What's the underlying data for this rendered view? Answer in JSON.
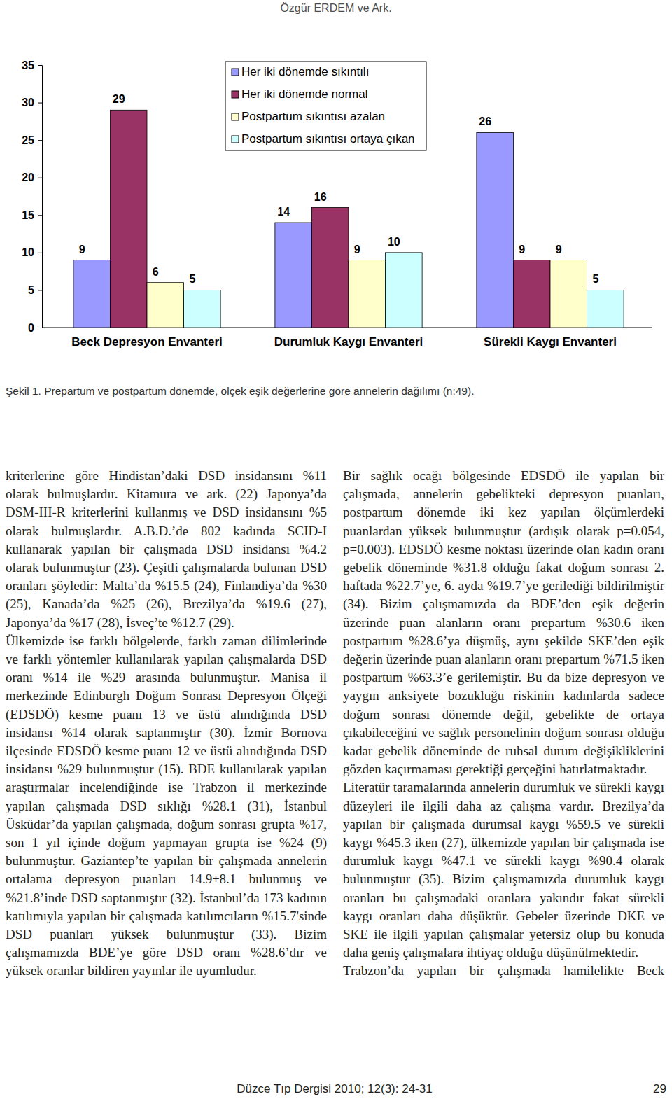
{
  "header": {
    "running_title": "Özgür ERDEM ve Ark."
  },
  "chart_data": {
    "type": "bar",
    "categories": [
      "Beck Depresyon Envanteri",
      "Durumluk Kaygı Envanteri",
      "Sürekli Kaygı Envanteri"
    ],
    "series": [
      {
        "name": "Her iki dönemde sıkıntılı",
        "color": "#9999ff",
        "values": [
          9,
          14,
          26
        ]
      },
      {
        "name": "Her iki dönemde normal",
        "color": "#993366",
        "values": [
          29,
          16,
          9
        ]
      },
      {
        "name": "Postpartum sıkıntısı azalan",
        "color": "#ffffcc",
        "values": [
          6,
          9,
          9
        ]
      },
      {
        "name": "Postpartum sıkıntısı ortaya çıkan",
        "color": "#ccffff",
        "values": [
          5,
          10,
          5
        ]
      }
    ],
    "ylim": [
      0,
      35
    ],
    "yticks": [
      0,
      5,
      10,
      15,
      20,
      25,
      30,
      35
    ],
    "grid": false,
    "legend": "top",
    "data_labels": true
  },
  "caption": "Şekil 1. Prepartum ve postpartum dönemde, ölçek eşik değerlerine göre annelerin dağılımı (n:49).",
  "columns": [
    {
      "paragraphs": [
        "kriterlerine göre Hindistan’daki DSD insidansını %11 olarak bulmuşlardır. Kitamura ve ark. (22) Japonya’da DSM-III-R kriterlerini kullanmış ve DSD insidansını %5 olarak bulmuşlardır. A.B.D.’de 802 kadında SCID-I kullanarak yapılan bir çalışmada DSD insidansı %4.2 olarak bulunmuştur (23). Çeşitli çalışmalarda bulunan DSD oranları şöyledir: Malta’da %15.5 (24), Finlandiya’da %30 (25), Kanada’da %25 (26), Brezilya’da %19.6 (27), Japonya’da %17 (28), İsveç’te %12.7 (29).",
        "Ülkemizde ise farklı bölgelerde, farklı zaman dilimlerinde ve farklı yöntemler kullanılarak yapılan çalışmalarda DSD oranı %14 ile %29 arasında bulunmuştur. Manisa il merkezinde Edinburgh Doğum Sonrası Depresyon Ölçeği (EDSDÖ) kesme puanı 13 ve üstü alındığında DSD insidansı %14 olarak saptanmıştır (30). İzmir Bornova ilçesinde EDSDÖ kesme puanı 12 ve üstü alındığında DSD insidansı %29 bulunmuştur (15). BDE kullanılarak yapılan araştırmalar incelendiğinde ise Trabzon il merkezinde yapılan çalışmada DSD sıklığı %28.1 (31), İstanbul Üsküdar’da yapılan çalışmada, doğum sonrası grupta %17, son 1 yıl içinde doğum yapmayan grupta ise %24 (9) bulunmuştur. Gaziantep’te yapılan bir çalışmada annelerin ortalama depresyon puanları 14.9±8.1 bulunmuş ve %21.8’inde DSD saptanmıştır (32). İstanbul’da 173 kadının katılımıyla yapılan bir çalışmada katılımcıların %15.7'sinde DSD puanları yüksek bulunmuştur (33). Bizim çalışmamızda BDE’ye göre DSD oranı %28.6’dır ve yüksek oranlar bildiren yayınlar ile uyumludur."
      ]
    },
    {
      "paragraphs": [
        "Bir sağlık ocağı bölgesinde EDSDÖ ile yapılan bir çalışmada, annelerin gebelikteki depresyon puanları, postpartum dönemde iki kez yapılan ölçümlerdeki puanlardan yüksek bulunmuştur (ardışık olarak p=0.054, p=0.003). EDSDÖ kesme noktası üzerinde olan kadın oranı gebelik döneminde %31.8 olduğu fakat doğum sonrası 2. haftada %22.7’ye, 6. ayda %19.7’ye gerilediği bildirilmiştir (34). Bizim çalışmamızda da BDE’den eşik değerin üzerinde puan alanların oranı prepartum %30.6 iken postpartum %28.6’ya düşmüş, aynı şekilde SKE’den eşik değerin üzerinde puan alanların oranı prepartum %71.5 iken postpartum %63.3’e gerilemiştir. Bu da bize depresyon ve yaygın anksiyete bozukluğu riskinin kadınlarda sadece doğum sonrası dönemde değil, gebelikte de ortaya çıkabileceğini ve sağlık personelinin doğum sonrası olduğu kadar gebelik döneminde de ruhsal durum değişikliklerini gözden kaçırmaması gerektiği gerçeğini hatırlatmaktadır.",
        "Literatür taramalarında annelerin durumluk ve sürekli kaygı düzeyleri ile ilgili daha az çalışma vardır. Brezilya’da yapılan bir çalışmada durumsal kaygı %59.5 ve sürekli kaygı %45.3 iken (27), ülkemizde yapılan bir çalışmada ise durumluk kaygı %47.1 ve sürekli kaygı %90.4 olarak bulunmuştur (35). Bizim çalışmamızda durumluk kaygı oranları bu çalışmadaki oranlara yakındır fakat sürekli kaygı oranları daha düşüktür. Gebeler üzerinde DKE ve SKE ile ilgili yapılan çalışmalar yetersiz olup bu konuda daha geniş çalışmalara ihtiyaç olduğu düşünülmektedir.",
        "Trabzon’da yapılan bir çalışmada hamilelikte Beck"
      ]
    }
  ],
  "footer": {
    "journal": "Düzce Tıp Dergisi 2010; 12(3): 24-31",
    "page": "29"
  }
}
